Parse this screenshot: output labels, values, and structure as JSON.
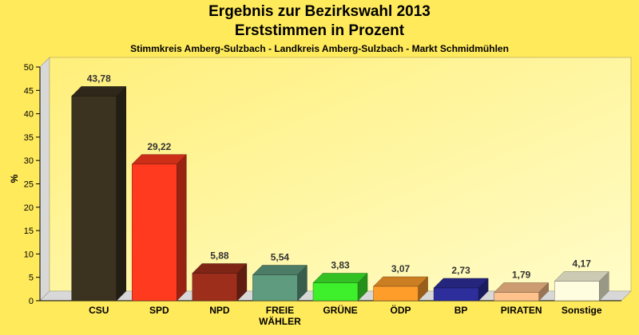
{
  "chart_data": {
    "type": "bar",
    "title": "Ergebnis zur Bezirkswahl 2013",
    "subtitle": "Erststimmen in Prozent",
    "caption": "Stimmkreis Amberg-Sulzbach - Landkreis Amberg-Sulzbach - Markt Schmidmühlen",
    "ylabel": "%",
    "ylim": [
      0,
      50
    ],
    "yticks": [
      0,
      5,
      10,
      15,
      20,
      25,
      30,
      35,
      40,
      45,
      50
    ],
    "grid": false,
    "categories": [
      [
        "CSU"
      ],
      [
        "SPD"
      ],
      [
        "NPD"
      ],
      [
        "FREIE",
        "WÄHLER"
      ],
      [
        "GRÜNE"
      ],
      [
        "ÖDP"
      ],
      [
        "BP"
      ],
      [
        "PIRATEN"
      ],
      [
        "Sonstige"
      ]
    ],
    "values": [
      43.78,
      29.22,
      5.88,
      5.54,
      3.83,
      3.07,
      2.73,
      1.79,
      4.17
    ],
    "value_labels": [
      "43,78",
      "29,22",
      "5,88",
      "5,54",
      "3,83",
      "3,07",
      "2,73",
      "1,79",
      "4,17"
    ],
    "colors": [
      "#3b3220",
      "#ff3a1e",
      "#9e2e1c",
      "#5f9b7e",
      "#3ef02c",
      "#ff9d2a",
      "#2d2e9c",
      "#ffc28c",
      "#fffde0"
    ]
  }
}
